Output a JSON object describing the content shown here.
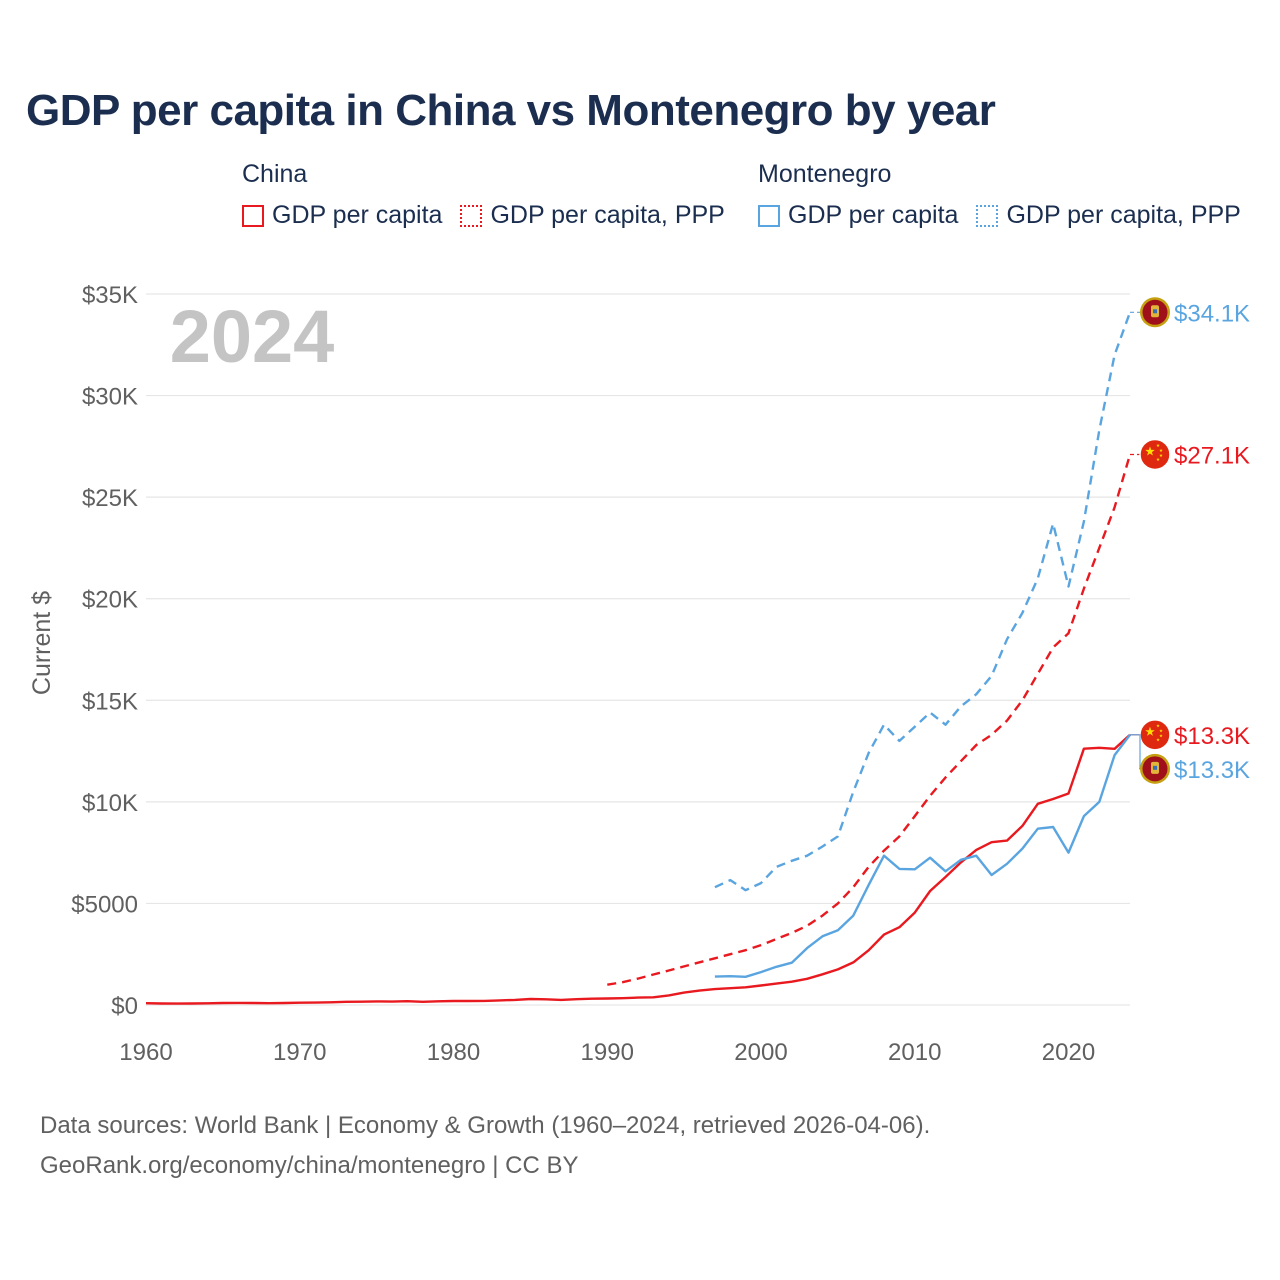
{
  "title": "GDP per capita in China vs Montenegro by year",
  "legend": {
    "groups": [
      {
        "label": "China",
        "items": [
          {
            "label": "GDP per capita",
            "color": "#e8191f",
            "style": "solid"
          },
          {
            "label": "GDP per capita, PPP",
            "color": "#e8191f",
            "style": "dotted"
          }
        ]
      },
      {
        "label": "Montenegro",
        "items": [
          {
            "label": "GDP per capita",
            "color": "#5aa5e0",
            "style": "solid"
          },
          {
            "label": "GDP per capita, PPP",
            "color": "#5aa5e0",
            "style": "dotted"
          }
        ]
      }
    ]
  },
  "sources": {
    "line1": "Data sources: World Bank | Economy & Growth (1960–2024, retrieved 2026-04-06).",
    "line2": "GeoRank.org/economy/china/montenegro | CC BY"
  },
  "chart_data": {
    "type": "line",
    "title": "GDP per capita in China vs Montenegro by year",
    "ylabel": "Current $",
    "xlabel": "",
    "year_label": "2024",
    "xlim": [
      1960,
      2024
    ],
    "ylim": [
      0,
      35000
    ],
    "x_ticks": [
      {
        "value": 1960,
        "label": "1960"
      },
      {
        "value": 1970,
        "label": "1970"
      },
      {
        "value": 1980,
        "label": "1980"
      },
      {
        "value": 1990,
        "label": "1990"
      },
      {
        "value": 2000,
        "label": "2000"
      },
      {
        "value": 2010,
        "label": "2010"
      },
      {
        "value": 2020,
        "label": "2020"
      }
    ],
    "y_ticks": [
      {
        "value": 0,
        "label": "$0"
      },
      {
        "value": 5000,
        "label": "$5000"
      },
      {
        "value": 10000,
        "label": "$10K"
      },
      {
        "value": 15000,
        "label": "$15K"
      },
      {
        "value": 20000,
        "label": "$20K"
      },
      {
        "value": 25000,
        "label": "$25K"
      },
      {
        "value": 30000,
        "label": "$30K"
      },
      {
        "value": 35000,
        "label": "$35K"
      }
    ],
    "grid": true,
    "series": [
      {
        "name": "China GDP per capita",
        "country": "China",
        "flag": "china",
        "color": "#e8191f",
        "dash": "solid",
        "end_label": "$13.3K",
        "x": [
          1960,
          1961,
          1962,
          1963,
          1964,
          1965,
          1966,
          1967,
          1968,
          1969,
          1970,
          1971,
          1972,
          1973,
          1974,
          1975,
          1976,
          1977,
          1978,
          1979,
          1980,
          1981,
          1982,
          1983,
          1984,
          1985,
          1986,
          1987,
          1988,
          1989,
          1990,
          1991,
          1992,
          1993,
          1994,
          1995,
          1996,
          1997,
          1998,
          1999,
          2000,
          2001,
          2002,
          2003,
          2004,
          2005,
          2006,
          2007,
          2008,
          2009,
          2010,
          2011,
          2012,
          2013,
          2014,
          2015,
          2016,
          2017,
          2018,
          2019,
          2020,
          2021,
          2022,
          2023,
          2024
        ],
        "values": [
          90,
          76,
          71,
          74,
          85,
          98,
          104,
          97,
          91,
          100,
          113,
          119,
          132,
          157,
          160,
          178,
          165,
          185,
          156,
          184,
          195,
          197,
          203,
          225,
          251,
          294,
          282,
          252,
          284,
          311,
          318,
          333,
          366,
          377,
          473,
          610,
          709,
          782,
          829,
          873,
          959,
          1053,
          1149,
          1289,
          1509,
          1753,
          2099,
          2694,
          3468,
          3832,
          4550,
          5614,
          6301,
          7020,
          7636,
          8016,
          8094,
          8817,
          9905,
          10143,
          10409,
          12618,
          12663,
          12614,
          13300
        ]
      },
      {
        "name": "China GDP per capita, PPP",
        "country": "China",
        "flag": "china",
        "color": "#e8191f",
        "dash": "dashed",
        "end_label": "$27.1K",
        "x": [
          1990,
          1991,
          1992,
          1993,
          1994,
          1995,
          1996,
          1997,
          1998,
          1999,
          2000,
          2001,
          2002,
          2003,
          2004,
          2005,
          2006,
          2007,
          2008,
          2009,
          2010,
          2011,
          2012,
          2013,
          2014,
          2015,
          2016,
          2017,
          2018,
          2019,
          2020,
          2021,
          2022,
          2023,
          2024
        ],
        "values": [
          1000,
          1120,
          1300,
          1500,
          1700,
          1900,
          2100,
          2300,
          2500,
          2700,
          2950,
          3250,
          3550,
          3900,
          4400,
          5000,
          5800,
          6800,
          7600,
          8300,
          9300,
          10300,
          11200,
          12000,
          12800,
          13300,
          14000,
          15000,
          16300,
          17600,
          18300,
          20500,
          22500,
          24500,
          27100
        ]
      },
      {
        "name": "Montenegro GDP per capita",
        "country": "Montenegro",
        "flag": "montenegro",
        "color": "#5aa5e0",
        "dash": "solid",
        "end_label": "$13.3K",
        "x": [
          1997,
          1998,
          1999,
          2000,
          2001,
          2002,
          2003,
          2004,
          2005,
          2006,
          2007,
          2008,
          2009,
          2010,
          2011,
          2012,
          2013,
          2014,
          2015,
          2016,
          2017,
          2018,
          2019,
          2020,
          2021,
          2022,
          2023,
          2024
        ],
        "values": [
          1400,
          1420,
          1390,
          1620,
          1880,
          2080,
          2800,
          3380,
          3680,
          4400,
          5900,
          7350,
          6700,
          6680,
          7250,
          6580,
          7150,
          7350,
          6400,
          6950,
          7700,
          8680,
          8760,
          7500,
          9300,
          10000,
          12300,
          13300
        ]
      },
      {
        "name": "Montenegro GDP per capita, PPP",
        "country": "Montenegro",
        "flag": "montenegro",
        "color": "#5aa5e0",
        "dash": "dashed",
        "end_label": "$34.1K",
        "x": [
          1997,
          1998,
          1999,
          2000,
          2001,
          2002,
          2003,
          2004,
          2005,
          2006,
          2007,
          2008,
          2009,
          2010,
          2011,
          2012,
          2013,
          2014,
          2015,
          2016,
          2017,
          2018,
          2019,
          2020,
          2021,
          2022,
          2023,
          2024
        ],
        "values": [
          5800,
          6150,
          5650,
          6000,
          6800,
          7100,
          7350,
          7800,
          8300,
          10500,
          12400,
          13800,
          13000,
          13700,
          14400,
          13800,
          14700,
          15300,
          16200,
          18000,
          19300,
          21000,
          23700,
          20600,
          23800,
          28300,
          32000,
          34100
        ]
      }
    ]
  }
}
